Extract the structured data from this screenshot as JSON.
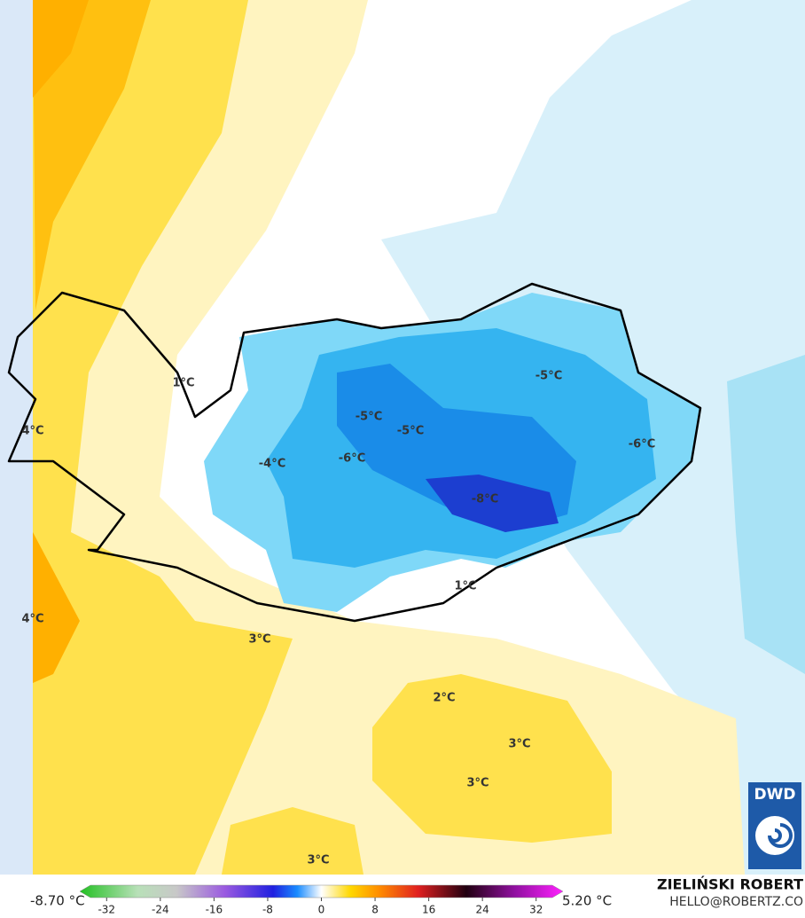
{
  "map": {
    "labels": [
      "1°C",
      "4°C",
      "-5°C",
      "-5°C",
      "-5°C",
      "-6°C",
      "-4°C",
      "-6°C",
      "-8°C",
      "1°C",
      "4°C",
      "3°C",
      "2°C",
      "3°C",
      "3°C",
      "3°C"
    ],
    "colorbar": {
      "min_label": "-8.70 °C",
      "max_label": "5.20 °C",
      "lim": [
        -36,
        36
      ],
      "ticks": [
        -32,
        -24,
        -16,
        -8,
        0,
        8,
        16,
        24,
        32
      ]
    },
    "author": "ZIELIŃSKI ROBERT",
    "contact": "HELLO@ROBERTZ.CO",
    "logo": "DWD"
  }
}
